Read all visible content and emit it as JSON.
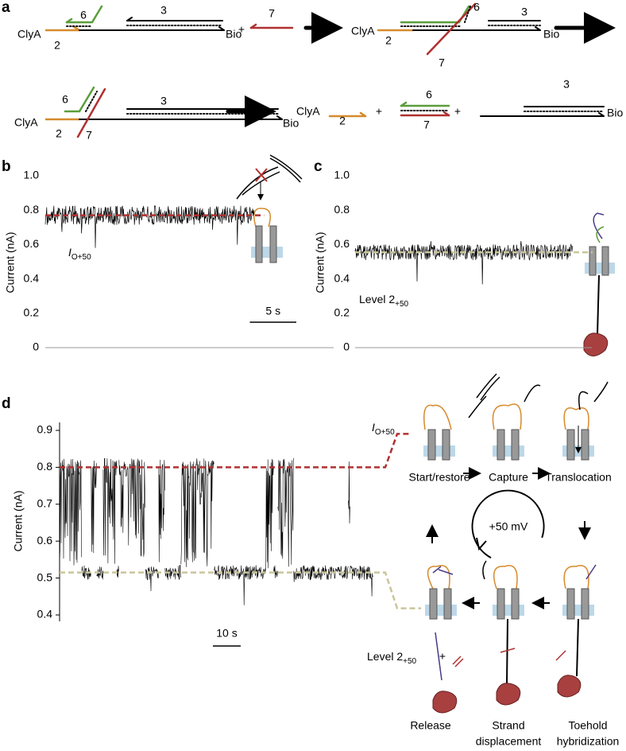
{
  "panel_a": {
    "label": "a",
    "step1": {
      "s6": "6",
      "s3": "3",
      "clya": "ClyA",
      "s2": "2",
      "bio": "Bio",
      "plus": "+",
      "s7": "7"
    },
    "step2": {
      "s6": "6",
      "s3": "3",
      "clya": "ClyA",
      "s2": "2",
      "bio": "Bio",
      "s7": "7"
    },
    "step3": {
      "s6": "6",
      "s3": "3",
      "clya": "ClyA",
      "s2": "2",
      "bio": "Bio",
      "s7": "7"
    },
    "step4": {
      "clya": "ClyA",
      "s2": "2",
      "plus1": "+",
      "s6": "6",
      "s7": "7",
      "plus2": "+",
      "s3": "3",
      "bio": "Bio"
    }
  },
  "panel_b": {
    "label": "b",
    "ylabel": "Current (nA)",
    "ylim": [
      0,
      1
    ],
    "yticks": [
      0,
      0.2,
      0.4,
      0.6,
      0.8,
      {
        "value": 1,
        "label": "1.0"
      }
    ],
    "xlim": [
      0,
      27
    ],
    "trace": {
      "start": 0,
      "end": 22.5,
      "level": 0.77
    },
    "level_label": {
      "main": "I",
      "sub": "O+50"
    },
    "scale_bar": {
      "value": 5,
      "label": "5 s"
    }
  },
  "panel_c": {
    "label": "c",
    "ylabel": "Current (nA)",
    "ylim": [
      0,
      1
    ],
    "yticks": [
      0,
      0.2,
      0.4,
      0.6,
      0.8,
      {
        "value": 1,
        "label": "1.0"
      }
    ],
    "xlim": [
      0,
      27
    ],
    "trace": {
      "start": 0,
      "end": 23.4,
      "level": 0.555
    },
    "level_label": {
      "main": "Level 2",
      "sub": "+50"
    }
  },
  "panel_d": {
    "label": "d",
    "ylabel": "Current (nA)",
    "ylim": [
      0.4,
      0.9
    ],
    "yticks": [
      0.4,
      0.5,
      0.6,
      0.7,
      0.8,
      0.9
    ],
    "xlim": [
      0,
      113
    ],
    "levels": {
      "open": 0.8,
      "level2": 0.515
    },
    "trace": [
      {
        "start": 0,
        "end": 8,
        "level": 0.8
      },
      {
        "start": 8,
        "end": 11.4,
        "level": 0.515
      },
      {
        "start": 11.4,
        "end": 13.4,
        "level": 0.8
      },
      {
        "start": 13.4,
        "end": 15.7,
        "level": 0.515
      },
      {
        "start": 15.7,
        "end": 20.6,
        "level": 0.8
      },
      {
        "start": 20.6,
        "end": 21.4,
        "level": 0.515
      },
      {
        "start": 21.4,
        "end": 30.9,
        "level": 0.8
      },
      {
        "start": 30.9,
        "end": 35.7,
        "level": 0.515
      },
      {
        "start": 35.7,
        "end": 38,
        "level": 0.8
      },
      {
        "start": 38,
        "end": 43.7,
        "level": 0.515
      },
      {
        "start": 43.7,
        "end": 55.7,
        "level": 0.8
      },
      {
        "start": 55.7,
        "end": 74.3,
        "level": 0.515
      },
      {
        "start": 74.3,
        "end": 77.1,
        "level": 0.8
      },
      {
        "start": 77.1,
        "end": 78.6,
        "level": 0.515
      },
      {
        "start": 78.6,
        "end": 84.3,
        "level": 0.8
      },
      {
        "start": 84.3,
        "end": 104,
        "level": 0.515
      },
      {
        "start": 104,
        "end": 104.6,
        "level": 0.8
      },
      {
        "start": 104.6,
        "end": 113,
        "level": 0.515
      }
    ],
    "open_label": {
      "main": "I",
      "sub": "O+50"
    },
    "level2_label": {
      "main": "Level 2",
      "sub": "+50"
    },
    "scale_bar": {
      "value": 10,
      "label": "10 s"
    },
    "cycle": {
      "voltage": "+50 mV",
      "start": "Start/restore",
      "capture": "Capture",
      "translocation": "Translocation",
      "release": "Release",
      "strand": [
        "Strand",
        "displacement"
      ],
      "toehold": [
        "Toehold",
        "hybridization"
      ],
      "plus": "+"
    }
  }
}
